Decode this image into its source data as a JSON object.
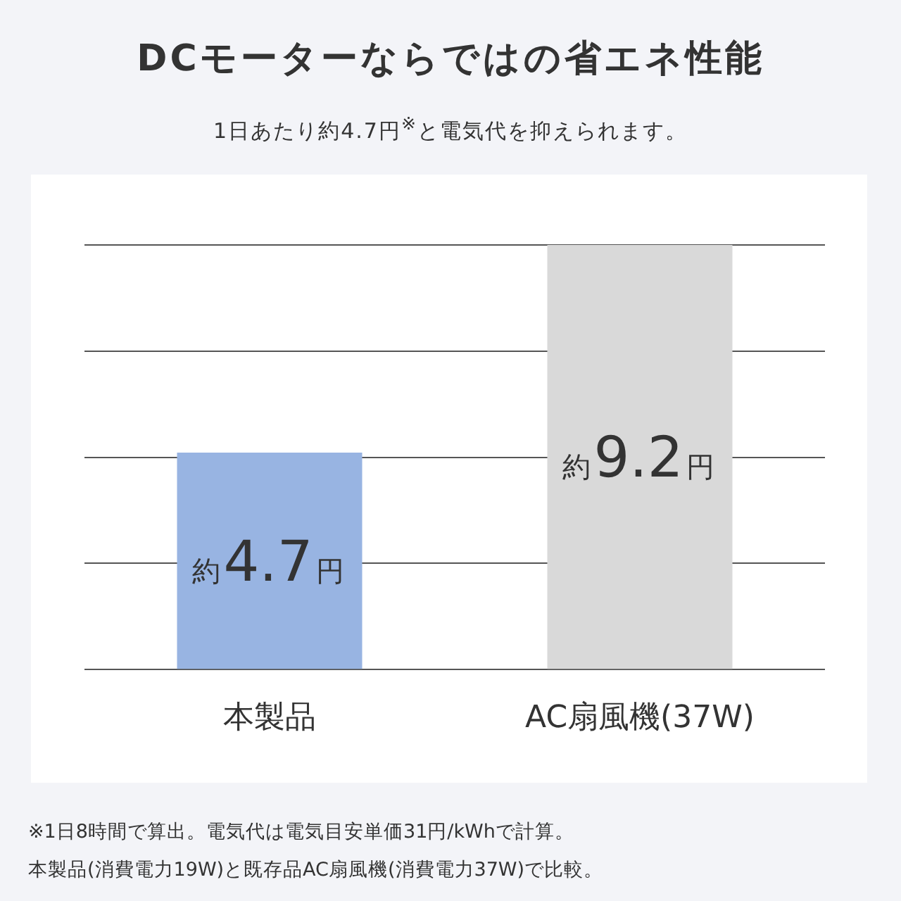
{
  "chart_data": {
    "type": "bar",
    "title": "DCモーターならではの省エネ性能",
    "subtitle": "1日あたり約4.7円$^{※}$と電気代を抑えられます。",
    "categories": [
      "本製品",
      "AC扇風機(37W)"
    ],
    "values": [
      4.7,
      9.2
    ],
    "colors": [
      "#98b4e2",
      "#d9d9d9"
    ],
    "value_labels": [
      "約4.7円",
      "約9.2円"
    ],
    "ylim": [
      0,
      9.2
    ],
    "yticks": [
      {
        "value": 0,
        "label": null
      },
      {
        "value": 2.3,
        "label": null
      },
      {
        "value": 4.6,
        "label": null
      },
      {
        "value": 6.9,
        "label": null
      },
      {
        "value": 9.2,
        "label": null
      }
    ],
    "grid": "y",
    "tick_labels": "x",
    "annotations": [
      "※1日8時間で算出。電気代は電気目安単価31円/kWhで計算。",
      "本製品(消費電力19W)と既存品AC扇風機(消費電力37W)で比較。"
    ]
  }
}
